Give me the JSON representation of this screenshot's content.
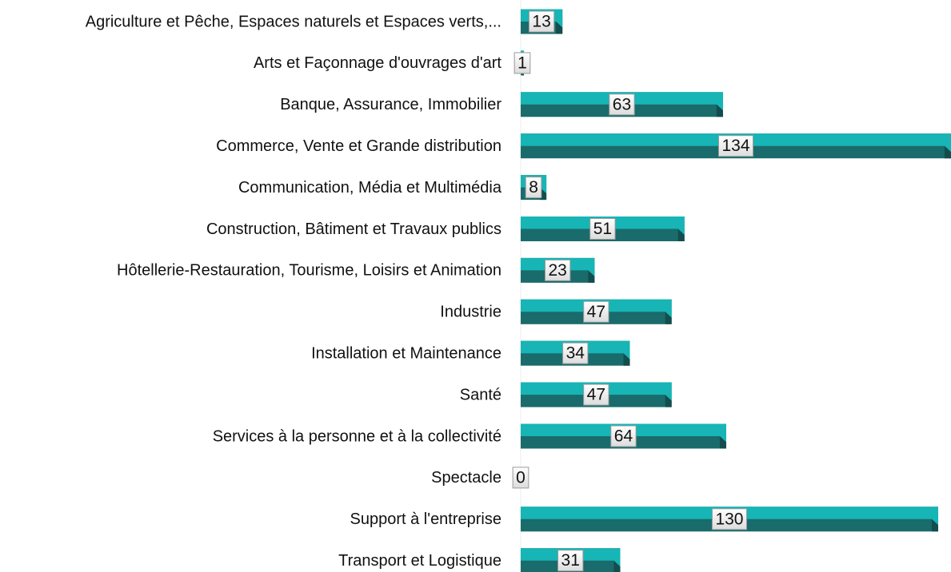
{
  "chart_data": {
    "type": "bar",
    "orientation": "horizontal",
    "categories": [
      "Agriculture et Pêche, Espaces naturels et Espaces verts,...",
      "Arts et Façonnage d'ouvrages d'art",
      "Banque, Assurance, Immobilier",
      "Commerce, Vente et Grande distribution",
      "Communication, Média et Multimédia",
      "Construction, Bâtiment et Travaux publics",
      "Hôtellerie-Restauration, Tourisme, Loisirs et Animation",
      "Industrie",
      "Installation et Maintenance",
      "Santé",
      "Services à la personne et à la collectivité",
      "Spectacle",
      "Support à l'entreprise",
      "Transport et Logistique"
    ],
    "values": [
      13,
      1,
      63,
      134,
      8,
      51,
      23,
      47,
      34,
      47,
      64,
      0,
      130,
      31
    ],
    "color": "#17b5b5",
    "shade_color": "#1a6b6b"
  }
}
